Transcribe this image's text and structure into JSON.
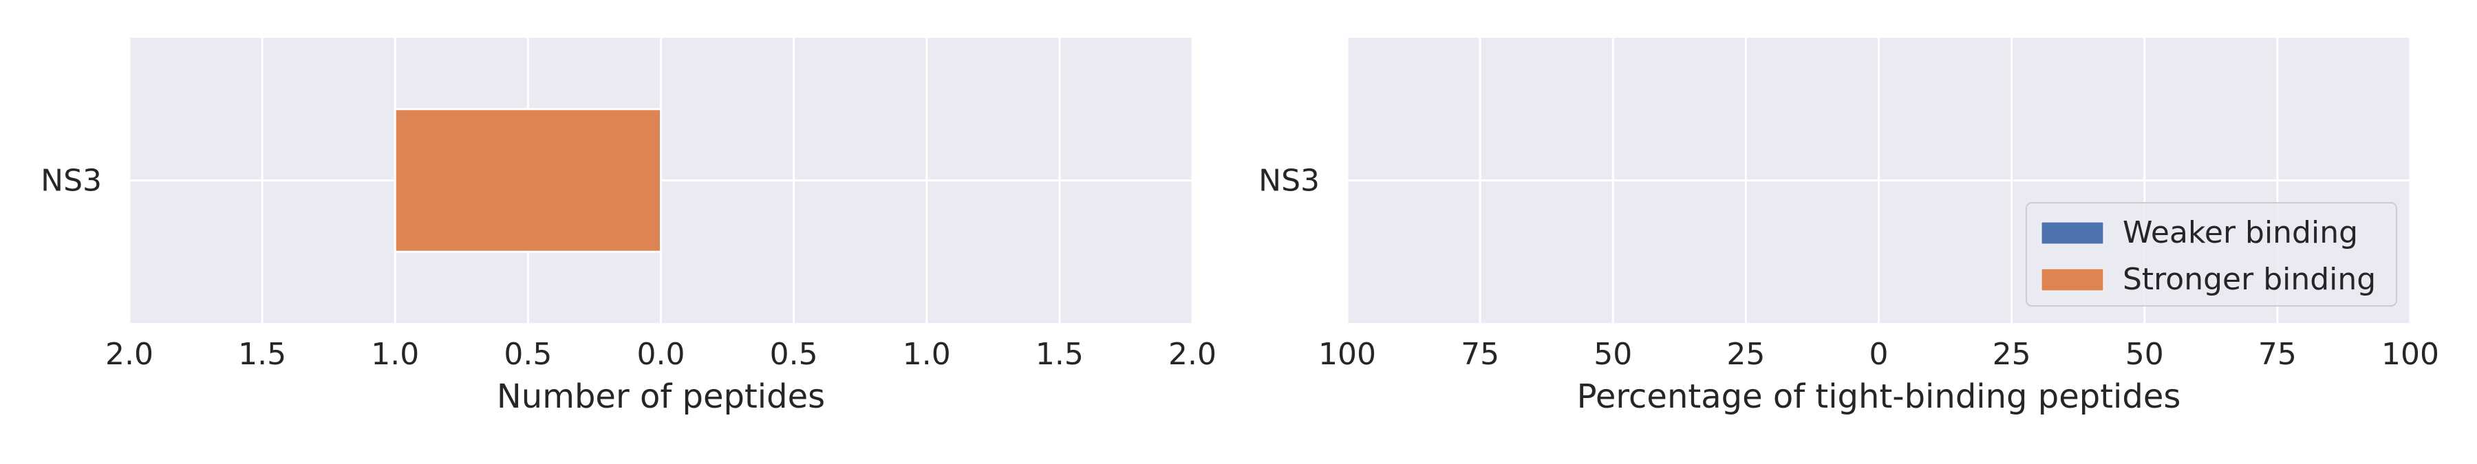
{
  "chart_data": [
    {
      "type": "bar",
      "orientation": "horizontal",
      "categories": [
        "NS3"
      ],
      "series": [
        {
          "name": "Weaker binding",
          "color": "#4c72b0",
          "side": "right",
          "values": [
            0
          ]
        },
        {
          "name": "Stronger binding",
          "color": "#dd8452",
          "side": "left",
          "values": [
            1
          ]
        }
      ],
      "xlabel": "Number of peptides",
      "ylabel": "",
      "xlim": [
        -2,
        2
      ],
      "xticks": [
        -2,
        -1.5,
        -1,
        -0.5,
        0,
        0.5,
        1,
        1.5,
        2
      ],
      "xtick_labels": [
        "2.0",
        "1.5",
        "1.0",
        "0.5",
        "0.0",
        "0.5",
        "1.0",
        "1.5",
        "2.0"
      ],
      "grid": true,
      "legend": false
    },
    {
      "type": "bar",
      "orientation": "horizontal",
      "categories": [
        "NS3"
      ],
      "series": [
        {
          "name": "Weaker binding",
          "color": "#4c72b0",
          "side": "right",
          "values": [
            0
          ]
        },
        {
          "name": "Stronger binding",
          "color": "#dd8452",
          "side": "left",
          "values": [
            0
          ]
        }
      ],
      "xlabel": "Percentage of tight-binding peptides",
      "ylabel": "",
      "xlim": [
        -100,
        100
      ],
      "xticks": [
        -100,
        -75,
        -50,
        -25,
        0,
        25,
        50,
        75,
        100
      ],
      "xtick_labels": [
        "100",
        "75",
        "50",
        "25",
        "0",
        "25",
        "50",
        "75",
        "100"
      ],
      "grid": true,
      "legend": true,
      "legend_position": "lower-right"
    }
  ],
  "theme": {
    "panel_background": "#eaeaf2",
    "grid_color": "#ffffff",
    "text_color": "#262626"
  }
}
